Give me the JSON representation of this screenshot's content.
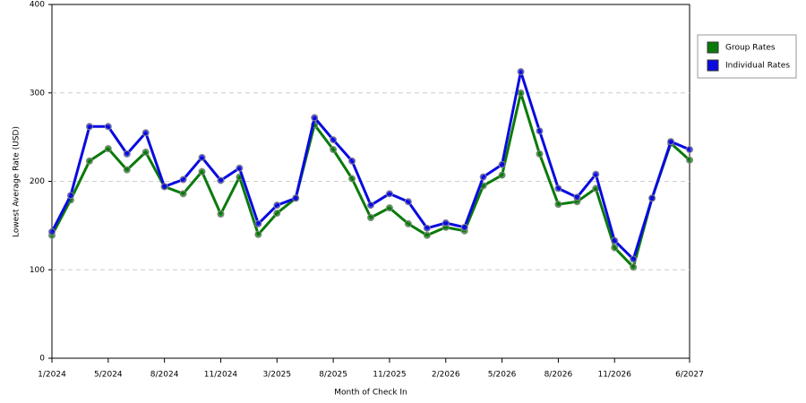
{
  "chart_data": {
    "type": "line",
    "x_label": "Month of Check In",
    "y_label": "Lowest Average Rate (USD)",
    "categories": [
      "1/2024",
      null,
      null,
      "5/2024",
      null,
      null,
      "8/2024",
      null,
      null,
      "11/2024",
      null,
      null,
      "3/2025",
      null,
      null,
      "8/2025",
      null,
      null,
      "11/2025",
      null,
      null,
      "2/2026",
      null,
      null,
      "5/2026",
      null,
      null,
      "8/2026",
      null,
      null,
      "11/2026",
      null,
      null,
      null,
      "6/2027"
    ],
    "series": [
      {
        "name": "Group Rates",
        "color": "#0a7a0a",
        "values": [
          139,
          179,
          223,
          237,
          213,
          233,
          194,
          186,
          211,
          163,
          205,
          140,
          164,
          181,
          264,
          236,
          203,
          159,
          170,
          152,
          139,
          148,
          144,
          195,
          207,
          300,
          231,
          174,
          177,
          192,
          125,
          103,
          181,
          243,
          224
        ]
      },
      {
        "name": "Individual Rates",
        "color": "#0a0ae0",
        "values": [
          143,
          184,
          262,
          262,
          231,
          255,
          194,
          202,
          227,
          201,
          215,
          152,
          173,
          181,
          272,
          247,
          223,
          173,
          186,
          177,
          147,
          153,
          148,
          205,
          219,
          324,
          257,
          192,
          182,
          208,
          133,
          112,
          181,
          245,
          236
        ]
      }
    ],
    "ylim": [
      0,
      400
    ],
    "yticks": [
      0,
      100,
      200,
      300,
      400
    ],
    "grid": true,
    "legend": "right"
  }
}
